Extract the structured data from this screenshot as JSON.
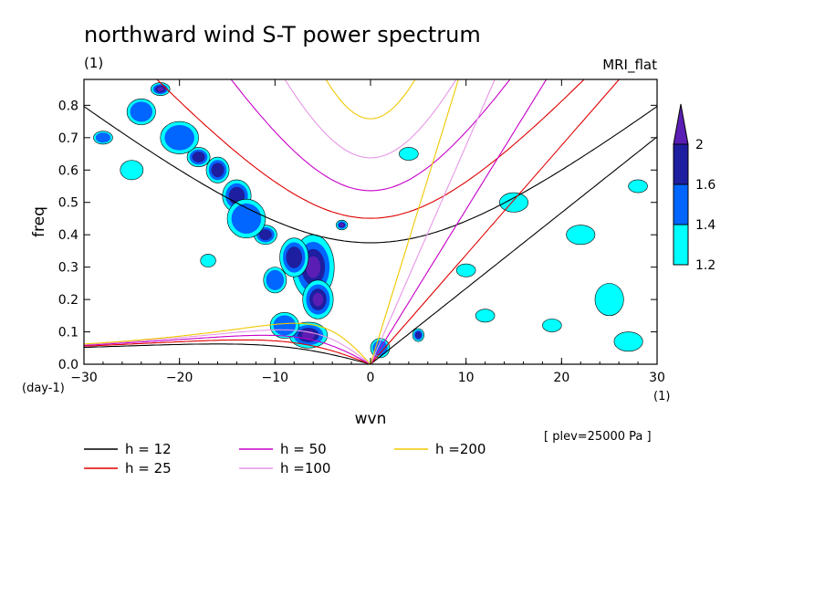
{
  "chart_data": {
    "type": "heatmap",
    "title": "northward wind S-T power spectrum",
    "subtitle_left": "(1)",
    "subtitle_right": "MRI_flat",
    "xlabel": "wvn",
    "ylabel": "freq",
    "x_unit": "(1)",
    "y_unit": "(day-1)",
    "xlim": [
      -30,
      30
    ],
    "ylim": [
      0,
      0.88
    ],
    "x_ticks": [
      -30,
      -20,
      -10,
      0,
      10,
      20,
      30
    ],
    "x_tick_labels": [
      "−30",
      "−20",
      "−10",
      "0",
      "10",
      "20",
      "30"
    ],
    "y_ticks": [
      0.0,
      0.1,
      0.2,
      0.3,
      0.4,
      0.5,
      0.6,
      0.7,
      0.8
    ],
    "y_tick_labels": [
      "0.0",
      "0.1",
      "0.2",
      "0.3",
      "0.4",
      "0.5",
      "0.6",
      "0.7",
      "0.8"
    ],
    "annotation": "[ plev=25000 Pa ]",
    "colorbar": {
      "levels": [
        1.2,
        1.4,
        1.6,
        2
      ],
      "labels": [
        "1.2",
        "1.4",
        "1.6",
        "2"
      ],
      "colors": [
        "#00ffff",
        "#0066ff",
        "#1e1ea0",
        "#5a1eb4"
      ]
    },
    "shading_blobs": [
      {
        "x": -6,
        "y": 0.3,
        "dx": 2.2,
        "dy": 0.1,
        "level": 3
      },
      {
        "x": -5.5,
        "y": 0.2,
        "dx": 1.6,
        "dy": 0.06,
        "level": 3
      },
      {
        "x": -6.5,
        "y": 0.09,
        "dx": 2,
        "dy": 0.04,
        "level": 3
      },
      {
        "x": -8,
        "y": 0.33,
        "dx": 1.5,
        "dy": 0.06,
        "level": 2
      },
      {
        "x": -14,
        "y": 0.52,
        "dx": 1.5,
        "dy": 0.05,
        "level": 2
      },
      {
        "x": -16,
        "y": 0.6,
        "dx": 1.2,
        "dy": 0.04,
        "level": 2
      },
      {
        "x": -18,
        "y": 0.64,
        "dx": 1.2,
        "dy": 0.03,
        "level": 2
      },
      {
        "x": -22,
        "y": 0.85,
        "dx": 1,
        "dy": 0.02,
        "level": 3
      },
      {
        "x": -3,
        "y": 0.43,
        "dx": 0.6,
        "dy": 0.015,
        "level": 3
      },
      {
        "x": 5,
        "y": 0.09,
        "dx": 0.6,
        "dy": 0.02,
        "level": 2
      },
      {
        "x": -11,
        "y": 0.4,
        "dx": 1.2,
        "dy": 0.03,
        "level": 2
      },
      {
        "x": -10,
        "y": 0.26,
        "dx": 1.2,
        "dy": 0.04,
        "level": 1
      },
      {
        "x": -20,
        "y": 0.7,
        "dx": 2,
        "dy": 0.05,
        "level": 1
      },
      {
        "x": -24,
        "y": 0.78,
        "dx": 1.5,
        "dy": 0.04,
        "level": 1
      },
      {
        "x": -13,
        "y": 0.45,
        "dx": 2,
        "dy": 0.06,
        "level": 1
      },
      {
        "x": -9,
        "y": 0.12,
        "dx": 1.5,
        "dy": 0.04,
        "level": 1
      },
      {
        "x": 1,
        "y": 0.05,
        "dx": 1,
        "dy": 0.03,
        "level": 1
      },
      {
        "x": 15,
        "y": 0.5,
        "dx": 1.5,
        "dy": 0.03,
        "level": 0
      },
      {
        "x": 25,
        "y": 0.2,
        "dx": 1.5,
        "dy": 0.05,
        "level": 0
      },
      {
        "x": 27,
        "y": 0.07,
        "dx": 1.5,
        "dy": 0.03,
        "level": 0
      },
      {
        "x": 22,
        "y": 0.4,
        "dx": 1.5,
        "dy": 0.03,
        "level": 0
      },
      {
        "x": 10,
        "y": 0.29,
        "dx": 1,
        "dy": 0.02,
        "level": 0
      },
      {
        "x": 28,
        "y": 0.55,
        "dx": 1,
        "dy": 0.02,
        "level": 0
      },
      {
        "x": 12,
        "y": 0.15,
        "dx": 1,
        "dy": 0.02,
        "level": 0
      },
      {
        "x": -28,
        "y": 0.7,
        "dx": 1,
        "dy": 0.02,
        "level": 1
      },
      {
        "x": 4,
        "y": 0.65,
        "dx": 1,
        "dy": 0.02,
        "level": 0
      },
      {
        "x": 19,
        "y": 0.12,
        "dx": 1,
        "dy": 0.02,
        "level": 0
      },
      {
        "x": -25,
        "y": 0.6,
        "dx": 1.2,
        "dy": 0.03,
        "level": 0
      },
      {
        "x": -17,
        "y": 0.32,
        "dx": 0.8,
        "dy": 0.02,
        "level": 0
      }
    ],
    "series": [
      {
        "name": "h = 12",
        "h": 12,
        "color": "#000000"
      },
      {
        "name": "h = 25",
        "h": 25,
        "color": "#e00000"
      },
      {
        "name": "h = 50",
        "h": 50,
        "color": "#c800c8"
      },
      {
        "name": "h =100",
        "h": 100,
        "color": "#e696e6"
      },
      {
        "name": "h =200",
        "h": 200,
        "color": "#f0c800"
      }
    ]
  }
}
